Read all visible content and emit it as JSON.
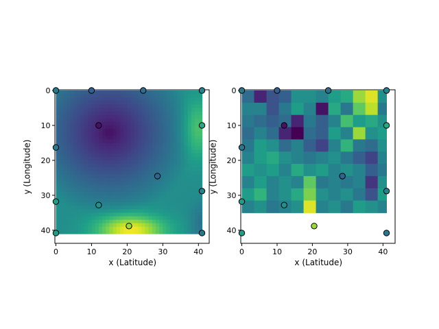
{
  "chart_data": [
    {
      "type": "heatmap",
      "id": "interpolated-field",
      "xlabel": "x (Latitude)",
      "ylabel": "y (Longitude)",
      "xlim": [
        0,
        41
      ],
      "ylim": [
        41,
        0
      ],
      "x_ticks": [
        "0",
        "10",
        "20",
        "30",
        "40"
      ],
      "y_ticks": [
        "0",
        "10",
        "20",
        "30",
        "40"
      ],
      "colormap": "viridis",
      "grid": false,
      "points": [
        {
          "x": 0,
          "y": 0,
          "v": 0.4
        },
        {
          "x": 10,
          "y": 0,
          "v": 0.3
        },
        {
          "x": 24.5,
          "y": 0,
          "v": 0.35
        },
        {
          "x": 41,
          "y": 0,
          "v": 0.45
        },
        {
          "x": 12,
          "y": 10,
          "v": 0.05
        },
        {
          "x": 41,
          "y": 10,
          "v": 0.6
        },
        {
          "x": 0,
          "y": 16.3,
          "v": 0.4
        },
        {
          "x": 28.5,
          "y": 24.5,
          "v": 0.32
        },
        {
          "x": 41,
          "y": 28.8,
          "v": 0.45
        },
        {
          "x": 0,
          "y": 31.8,
          "v": 0.55
        },
        {
          "x": 12,
          "y": 32.8,
          "v": 0.5
        },
        {
          "x": 20.5,
          "y": 38.8,
          "v": 0.85
        },
        {
          "x": 0,
          "y": 40.8,
          "v": 0.55
        },
        {
          "x": 41,
          "y": 40.8,
          "v": 0.4
        }
      ]
    },
    {
      "type": "heatmap",
      "id": "random-field",
      "xlabel": "x (Latitude)",
      "ylabel": "y (Longitude)",
      "xlim": [
        0,
        41
      ],
      "ylim": [
        41,
        0
      ],
      "x_ticks": [
        "0",
        "10",
        "20",
        "30",
        "40"
      ],
      "y_ticks": [
        "0",
        "10",
        "20",
        "30",
        "40"
      ],
      "colormap": "viridis",
      "grid": false,
      "cell_size": 3.5,
      "values": [
        [
          0.35,
          0.1,
          0.25,
          0.3,
          0.5,
          0.5,
          0.45,
          0.55,
          0.6,
          0.85,
          0.95,
          0.5
        ],
        [
          0.45,
          0.45,
          0.25,
          0.4,
          0.55,
          0.45,
          0.05,
          0.6,
          0.4,
          0.75,
          0.9,
          0.4
        ],
        [
          0.4,
          0.35,
          0.3,
          0.35,
          0.1,
          0.4,
          0.3,
          0.45,
          0.7,
          0.55,
          0.6,
          0.5
        ],
        [
          0.35,
          0.45,
          0.35,
          0.1,
          0.0,
          0.35,
          0.3,
          0.55,
          0.45,
          0.85,
          0.5,
          0.55
        ],
        [
          0.4,
          0.55,
          0.5,
          0.35,
          0.45,
          0.3,
          0.2,
          0.45,
          0.65,
          0.4,
          0.35,
          0.5
        ],
        [
          0.45,
          0.55,
          0.6,
          0.5,
          0.45,
          0.4,
          0.45,
          0.5,
          0.4,
          0.3,
          0.2,
          0.45
        ],
        [
          0.55,
          0.5,
          0.55,
          0.45,
          0.6,
          0.5,
          0.55,
          0.45,
          0.5,
          0.45,
          0.3,
          0.4
        ],
        [
          0.45,
          0.55,
          0.45,
          0.5,
          0.45,
          0.75,
          0.4,
          0.45,
          0.4,
          0.45,
          0.15,
          0.5
        ],
        [
          0.55,
          0.65,
          0.45,
          0.5,
          0.6,
          0.8,
          0.5,
          0.45,
          0.5,
          0.4,
          0.25,
          0.55
        ],
        [
          0.45,
          0.5,
          0.4,
          0.45,
          0.5,
          0.95,
          0.45,
          0.5,
          0.4,
          0.55,
          0.5,
          0.45
        ]
      ],
      "points": [
        {
          "x": 0,
          "y": 0,
          "v": 0.4
        },
        {
          "x": 10,
          "y": 0,
          "v": 0.3
        },
        {
          "x": 24.5,
          "y": 0,
          "v": 0.35
        },
        {
          "x": 41,
          "y": 0,
          "v": 0.45
        },
        {
          "x": 12,
          "y": 10,
          "v": 0.05
        },
        {
          "x": 41,
          "y": 10,
          "v": 0.6
        },
        {
          "x": 0,
          "y": 16.3,
          "v": 0.4
        },
        {
          "x": 28.5,
          "y": 24.5,
          "v": 0.32
        },
        {
          "x": 41,
          "y": 28.8,
          "v": 0.45
        },
        {
          "x": 0,
          "y": 31.8,
          "v": 0.55
        },
        {
          "x": 12,
          "y": 32.8,
          "v": 0.5
        },
        {
          "x": 20.5,
          "y": 38.8,
          "v": 0.85
        },
        {
          "x": 0,
          "y": 40.8,
          "v": 0.55
        },
        {
          "x": 41,
          "y": 40.8,
          "v": 0.4
        }
      ]
    }
  ]
}
